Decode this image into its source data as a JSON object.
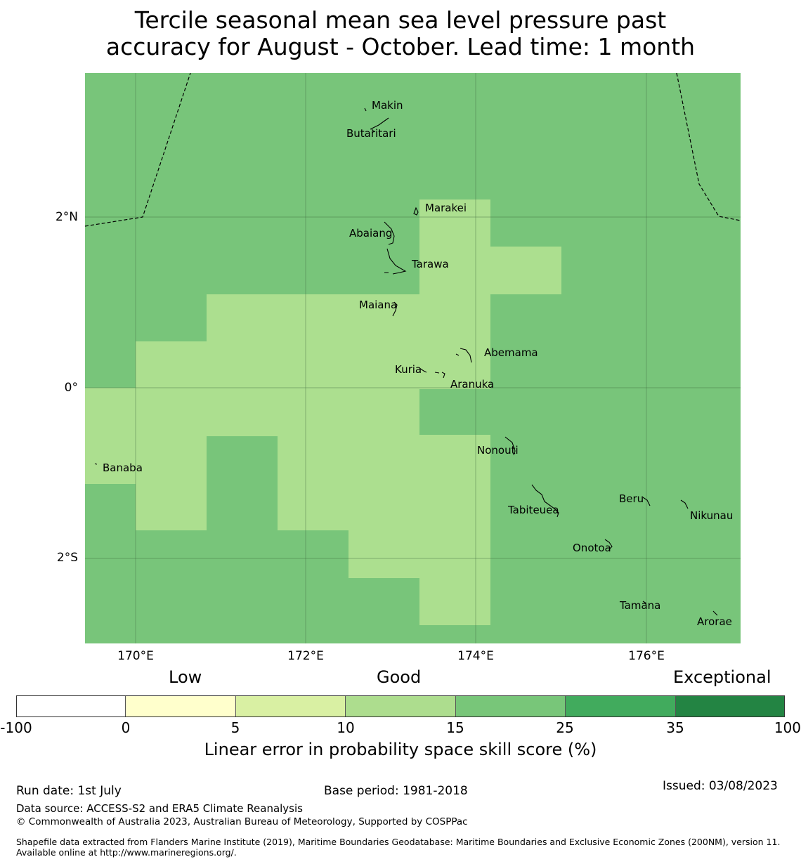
{
  "title": {
    "line1": "Tercile seasonal mean sea level pressure past",
    "line2": "accuracy for August - October. Lead time: 1 month"
  },
  "map": {
    "lat_labels": [
      "2°N",
      "0°",
      "2°S"
    ],
    "lon_labels": [
      "170°E",
      "172°E",
      "174°E",
      "176°E"
    ],
    "colors": {
      "light": "#acdf8f",
      "medium": "#78c57a"
    },
    "skill_grid_note_cells": [
      {
        "lon_range": [
          169.4,
          170.0
        ],
        "lat_range": [
          -1.1,
          0.0
        ],
        "class": "10-15"
      },
      {
        "lon_range": [
          170.0,
          170.83
        ],
        "lat_range": [
          -1.65,
          0.55
        ],
        "class": "10-15"
      },
      {
        "lon_range": [
          170.83,
          171.67
        ],
        "lat_range": [
          -0.55,
          1.1
        ],
        "class": "10-15"
      },
      {
        "lon_range": [
          171.67,
          172.5
        ],
        "lat_range": [
          -1.65,
          1.1
        ],
        "class": "10-15"
      },
      {
        "lon_range": [
          172.5,
          173.33
        ],
        "lat_range": [
          -2.2,
          1.1
        ],
        "class": "10-15"
      },
      {
        "lon_range": [
          173.33,
          174.17
        ],
        "lat_range": [
          -1.65,
          2.2
        ],
        "class": "10-15"
      },
      {
        "lon_range": [
          174.17,
          175.0
        ],
        "lat_range": [
          1.1,
          1.65
        ],
        "class": "10-15"
      },
      {
        "lon_range": [
          173.33,
          174.17
        ],
        "lat_range": [
          -2.75,
          -2.2
        ],
        "class": "10-15"
      }
    ],
    "islands": [
      "Makin",
      "Butaritari",
      "Marakei",
      "Abaiang",
      "Tarawa",
      "Maiana",
      "Abemama",
      "Kuria",
      "Aranuka",
      "Nonouti",
      "Banaba",
      "Beru",
      "Tabiteuea",
      "Nikunau",
      "Onotoa",
      "Tamana",
      "Arorae"
    ]
  },
  "colorbar": {
    "words": {
      "low": "Low",
      "good": "Good",
      "exceptional": "Exceptional"
    },
    "colors": [
      "#ffffff",
      "#ffffcc",
      "#d9f0a3",
      "#addd8e",
      "#78c679",
      "#41ab5d",
      "#238443"
    ],
    "ticks": [
      "-100",
      "0",
      "5",
      "10",
      "15",
      "25",
      "35",
      "100"
    ],
    "label": "Linear error in probability space skill score (%)"
  },
  "footer": {
    "run_date": "Run date: 1st July",
    "base_period": "Base period: 1981-2018",
    "issued": "Issued: 03/08/2023",
    "data_source": "Data source: ACCESS-S2 and ERA5 Climate Reanalysis",
    "copyright": "© Commonwealth of Australia 2023, Australian Bureau of Meteorology, Supported by COSPPac",
    "shapefile": "Shapefile data extracted from Flanders Marine Institute (2019), Maritime Boundaries Geodatabase: Maritime Boundaries and Exclusive Economic Zones (200NM), version 11. Available online at http://www.marineregions.org/."
  }
}
